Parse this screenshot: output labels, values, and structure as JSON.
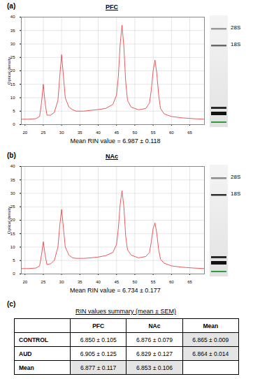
{
  "chart_data": [
    {
      "type": "line",
      "panel": "(a)",
      "title": "PFC",
      "y_label": "Optical density",
      "x": [
        19,
        21,
        23,
        24,
        24.5,
        25,
        25.5,
        26,
        27,
        28,
        29,
        29.5,
        30,
        30.5,
        31,
        32,
        33,
        34,
        36,
        38,
        40,
        42,
        44,
        45,
        45.5,
        46,
        46.5,
        47,
        47.5,
        48,
        49,
        51,
        53,
        54,
        54.5,
        55,
        55.5,
        56,
        56.5,
        57,
        58,
        60,
        63,
        66,
        69
      ],
      "values": [
        2,
        2,
        2.2,
        3,
        8,
        15,
        8,
        3.5,
        3.5,
        4.5,
        9,
        18,
        26,
        18,
        10,
        6.5,
        5.5,
        5,
        5,
        5.3,
        5.6,
        6,
        7.5,
        11,
        18,
        30,
        37,
        29,
        16,
        9,
        6.5,
        5.5,
        6,
        8,
        13,
        20,
        24,
        19,
        11,
        6,
        4,
        3,
        2.5,
        2.2,
        2
      ],
      "color": "#e8474c",
      "xlim": [
        19,
        69
      ],
      "xticks": [
        20,
        25,
        30,
        35,
        40,
        45,
        50,
        55,
        60,
        65
      ],
      "ylim": [
        0,
        40
      ],
      "yticks": [
        0,
        5,
        10,
        15,
        20,
        25,
        30,
        35,
        40
      ],
      "grid": true,
      "gel_labels": [
        "28S",
        "18S"
      ],
      "caption": "Mean RIN value = 6.987 ± 0.118"
    },
    {
      "type": "line",
      "panel": "(b)",
      "title": "NAc",
      "y_label": "Optical density",
      "x": [
        19,
        21,
        23,
        24,
        24.5,
        25,
        25.5,
        26,
        27,
        28,
        29,
        29.5,
        30,
        30.5,
        31,
        32,
        33,
        34,
        36,
        38,
        40,
        42,
        44,
        45,
        45.5,
        46,
        46.5,
        47,
        47.5,
        48,
        49,
        51,
        53,
        54,
        54.5,
        55,
        55.5,
        56,
        56.5,
        57,
        58,
        60,
        63,
        66,
        69
      ],
      "values": [
        2,
        2,
        2.2,
        3,
        7,
        12,
        7,
        3.5,
        3.8,
        5,
        10,
        18,
        24,
        17,
        10,
        7,
        6,
        5.8,
        5.8,
        6,
        6.3,
        6.8,
        8,
        11,
        17,
        26,
        31,
        25,
        14,
        9,
        7,
        6,
        6.5,
        8,
        12,
        17,
        19,
        15,
        9,
        5.5,
        4,
        3,
        2.5,
        2.2,
        2
      ],
      "color": "#e8474c",
      "xlim": [
        19,
        69
      ],
      "xticks": [
        20,
        25,
        30,
        35,
        40,
        45,
        50,
        55,
        60,
        65
      ],
      "ylim": [
        0,
        40
      ],
      "yticks": [
        0,
        5,
        10,
        15,
        20,
        25,
        30,
        35,
        40
      ],
      "grid": true,
      "gel_labels": [
        "28S",
        "18S"
      ],
      "caption": "Mean RIN value = 6.734 ± 0.177"
    }
  ],
  "table": {
    "panel": "(c)",
    "title": "RIN values summary (mean ± SEM)",
    "header": [
      null,
      "PFC",
      "NAc",
      "Mean"
    ],
    "rows": [
      [
        "CONTROL",
        "6.850 ± 0.105",
        "6.876 ± 0.079",
        "6.865 ± 0.009"
      ],
      [
        "AUD",
        "6.905 ± 0.125",
        "6.829 ± 0.127",
        "6.864 ± 0.014"
      ],
      [
        "Mean",
        "6.877 ± 0.117",
        "6.853 ± 0.106",
        null
      ]
    ]
  }
}
